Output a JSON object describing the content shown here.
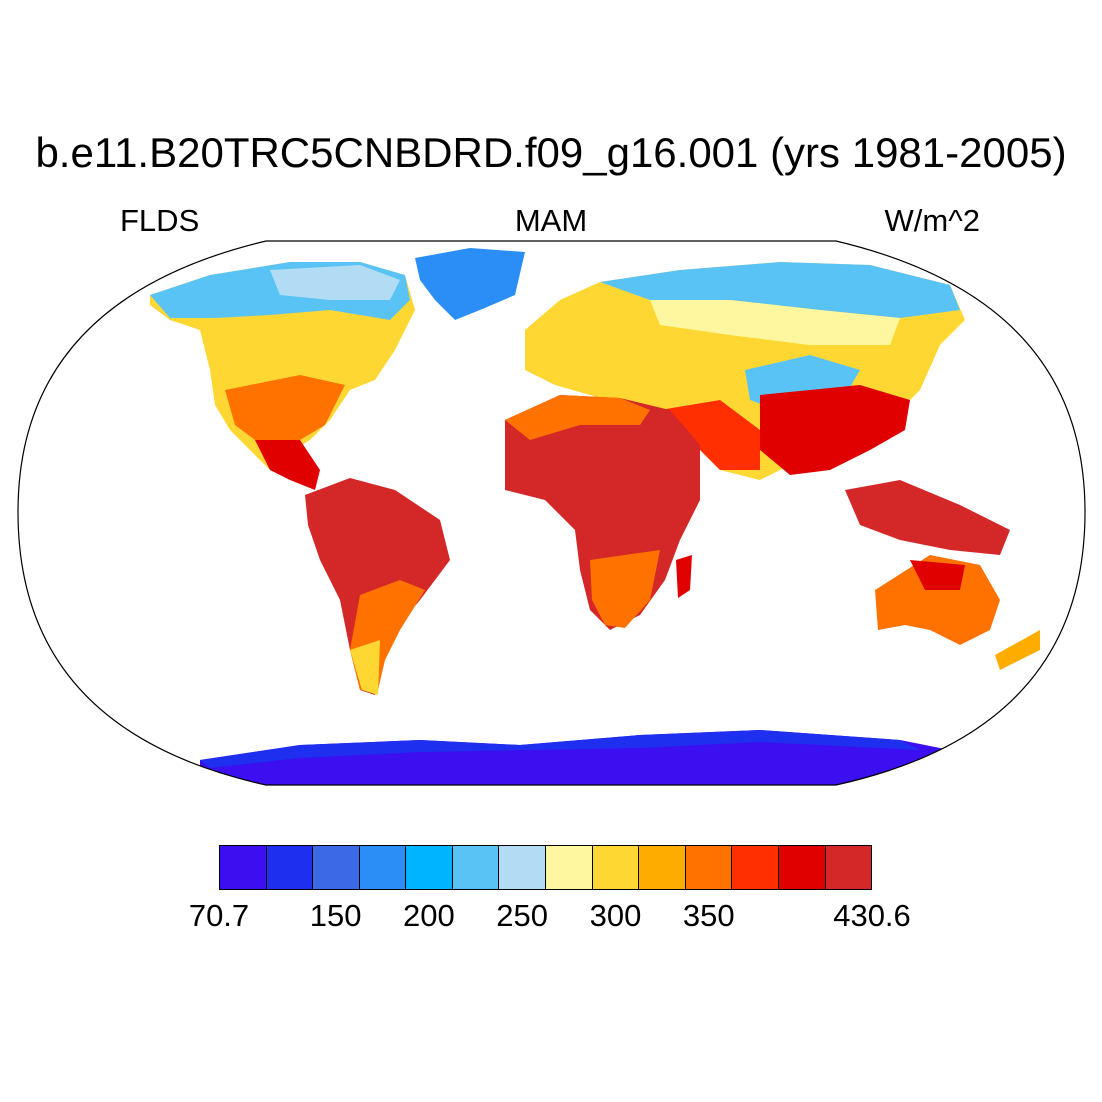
{
  "title": "b.e11.B20TRC5CNBDRD.f09_g16.001 (yrs 1981-2005)",
  "subtitle_left": "FLDS",
  "subtitle_center": "MAM",
  "subtitle_right": "W/m^2",
  "colorbar": {
    "colors": [
      "#3b0ff0",
      "#1e2ff0",
      "#3c6ae6",
      "#2b8ef6",
      "#00b4ff",
      "#5ac3f5",
      "#b1dcf4",
      "#fff6a0",
      "#ffd733",
      "#ffac00",
      "#ff7200",
      "#ff2f00",
      "#e00000",
      "#d42828"
    ],
    "labels": [
      "70.7",
      "150",
      "200",
      "250",
      "300",
      "350",
      "430.6"
    ],
    "label_box_index": [
      0,
      2.5,
      4.5,
      6.5,
      8.5,
      10.5,
      14
    ]
  }
}
